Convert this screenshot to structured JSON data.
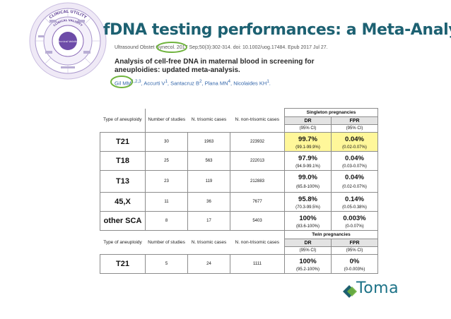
{
  "slide": {
    "title": "fDNA testing performances: a Meta-Analysis",
    "wheel": {
      "ring_outer": "CLINICAL UTILITY",
      "ring_inner": "CLINICAL VALIDITY",
      "center": "Tecnical Validity"
    },
    "citation": {
      "journal_line": "Ultrasound Obstet Gynecol. 2017 Sep;50(3):302-314. doi: 10.1002/uog.17484. Epub 2017 Jul 27.",
      "article_title": "Analysis of cell-free DNA in maternal blood in screening for aneuploidies: updated meta-analysis.",
      "authors": [
        {
          "name": "Gil MM",
          "sup": "1,2,3",
          "sep": ", "
        },
        {
          "name": "Accurti V",
          "sup": "1",
          "sep": ", "
        },
        {
          "name": "Santacruz B",
          "sup": "2",
          "sep": ", "
        },
        {
          "name": "Plana MN",
          "sup": "4",
          "sep": ", "
        },
        {
          "name": "Nicolaides KH",
          "sup": "1",
          "sep": "."
        }
      ]
    },
    "brand": "Toma"
  },
  "table": {
    "col_headers": {
      "type": "Type of aneuploidy",
      "studies": "Number of studies",
      "trisomic": "N. trisomic cases",
      "non_trisomic": "N. non-trisomic cases"
    },
    "singleton": {
      "group_label": "Singleton pregnancies",
      "dr_label": "DR",
      "fpr_label": "FPR",
      "ci_label": "(95% CI)",
      "rows": [
        {
          "type": "T21",
          "studies": "30",
          "trisomic": "1963",
          "non_trisomic": "223932",
          "dr": "99.7%",
          "dr_ci": "(99.1-99.9%)",
          "fpr": "0.04%",
          "fpr_ci": "(0.02-0.07%)",
          "highlight": true
        },
        {
          "type": "T18",
          "studies": "25",
          "trisomic": "563",
          "non_trisomic": "222013",
          "dr": "97.9%",
          "dr_ci": "(94.9-99.1%)",
          "fpr": "0.04%",
          "fpr_ci": "(0.03-0.07%)",
          "highlight": false
        },
        {
          "type": "T13",
          "studies": "23",
          "trisomic": "119",
          "non_trisomic": "212883",
          "dr": "99.0%",
          "dr_ci": "(65.8-100%)",
          "fpr": "0.04%",
          "fpr_ci": "(0.02-0.07%)",
          "highlight": false
        },
        {
          "type": "45,X",
          "studies": "11",
          "trisomic": "36",
          "non_trisomic": "7677",
          "dr": "95.8%",
          "dr_ci": "(70.3-99.5%)",
          "fpr": "0.14%",
          "fpr_ci": "(0.05-0.38%)",
          "highlight": false
        },
        {
          "type": "other SCA",
          "studies": "8",
          "trisomic": "17",
          "non_trisomic": "5403",
          "dr": "100%",
          "dr_ci": "(83.6-100%)",
          "fpr": "0.003%",
          "fpr_ci": "(0-0.07%)",
          "highlight": false
        }
      ]
    },
    "twin": {
      "group_label": "Twin pregnancies",
      "dr_label": "DR",
      "fpr_label": "FPR",
      "ci_label": "(95% CI)",
      "rows": [
        {
          "type": "T21",
          "studies": "5",
          "trisomic": "24",
          "non_trisomic": "1111",
          "dr": "100%",
          "dr_ci": "(95.2-100%)",
          "fpr": "0%",
          "fpr_ci": "(0-0.003%)",
          "highlight": false
        }
      ]
    }
  },
  "colors": {
    "title": "#1d6172",
    "highlight": "#fff79a",
    "circle_green": "#6fb33d",
    "wheel_purple": "#8c6bb8",
    "brand": "#1c7287"
  }
}
